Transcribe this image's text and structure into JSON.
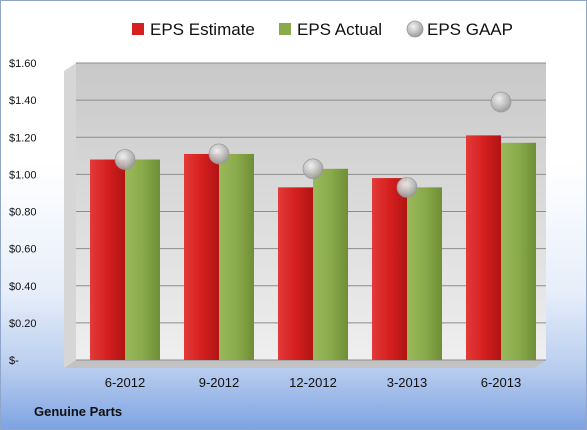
{
  "chart_data": {
    "type": "bar",
    "title": "",
    "xlabel": "",
    "ylabel": "",
    "company": "Genuine Parts",
    "categories": [
      "6-2012",
      "9-2012",
      "12-2012",
      "3-2013",
      "6-2013"
    ],
    "series": [
      {
        "name": "EPS Estimate",
        "kind": "bar",
        "color": "#d61f1f",
        "values": [
          1.08,
          1.11,
          0.93,
          0.98,
          1.21
        ]
      },
      {
        "name": "EPS Actual",
        "kind": "bar",
        "color": "#8aab4b",
        "values": [
          1.08,
          1.11,
          1.03,
          0.93,
          1.17
        ]
      },
      {
        "name": "EPS GAAP",
        "kind": "marker",
        "color": "#c9c9c9",
        "values": [
          1.08,
          1.11,
          1.03,
          0.93,
          1.39
        ]
      }
    ],
    "ylim": [
      0,
      1.6
    ],
    "yticks": [
      0,
      0.2,
      0.4,
      0.6,
      0.8,
      1.0,
      1.2,
      1.4,
      1.6
    ],
    "ytick_labels": [
      "$-",
      "$0.20",
      "$0.40",
      "$0.60",
      "$0.80",
      "$1.00",
      "$1.20",
      "$1.40",
      "$1.60"
    ],
    "grid": true,
    "legend_position": "top"
  }
}
